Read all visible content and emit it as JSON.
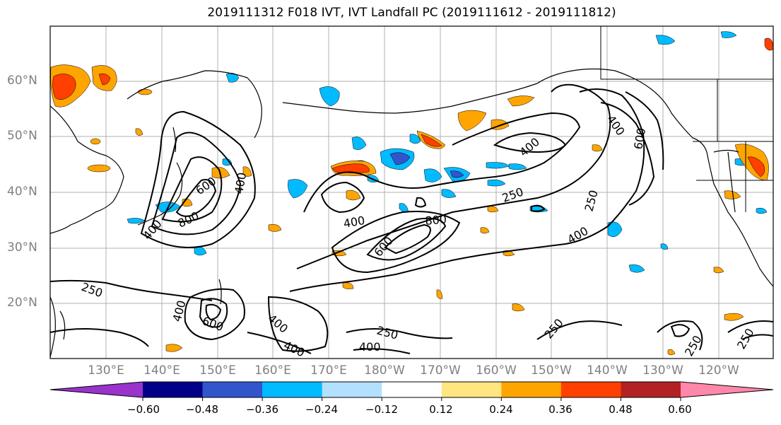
{
  "title": "2019111312 F018 IVT, IVT Landfall PC (2019111612 - 2019111812)",
  "lat_labels": [
    "60°N",
    "50°N",
    "40°N",
    "30°N",
    "20°N"
  ],
  "lon_labels": [
    "130°E",
    "140°E",
    "150°E",
    "160°E",
    "170°E",
    "180°W",
    "170°W",
    "160°W",
    "150°W",
    "140°W",
    "130°W",
    "120°W"
  ],
  "colorbar": {
    "colors": [
      "#9933cc",
      "#000088",
      "#3355cc",
      "#00bbff",
      "#b3e0ff",
      "#ffffff",
      "#ffe680",
      "#ffa500",
      "#ff4000",
      "#b22222",
      "#ff88aa"
    ],
    "tick_labels": [
      "−0.60",
      "−0.48",
      "−0.36",
      "−0.24",
      "−0.12",
      "0.12",
      "0.24",
      "0.36",
      "0.48",
      "0.60"
    ]
  },
  "contour_labels": {
    "c250": "250",
    "c400": "400",
    "c600": "600",
    "c800": "800"
  },
  "colors": {
    "lat_lon_label": "#808080",
    "grid": "#b0b0b0",
    "contour": "#000000"
  }
}
